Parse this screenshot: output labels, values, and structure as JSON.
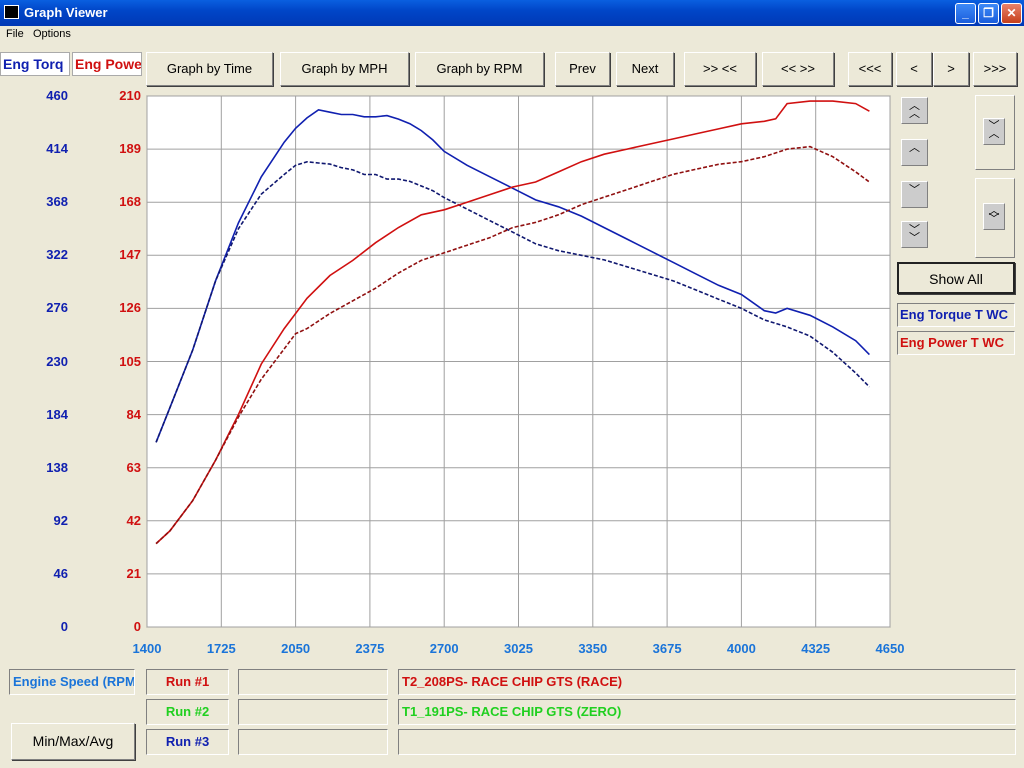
{
  "window": {
    "title": "Graph Viewer",
    "minimize": "_",
    "maximize": "❐",
    "close": "✕"
  },
  "menu": {
    "file": "File",
    "options": "Options"
  },
  "toolbar": {
    "graph_by_time": "Graph by Time",
    "graph_by_mph": "Graph by MPH",
    "graph_by_rpm": "Graph by RPM",
    "prev": "Prev",
    "next": "Next",
    "zoom_in": ">> <<",
    "zoom_out": "<< >>",
    "scroll_far_left": "<<<",
    "scroll_left": "<",
    "scroll_right": ">",
    "scroll_far_right": ">>>"
  },
  "y_tabs": {
    "torque": "Eng Torq",
    "power": "Eng Power"
  },
  "right_panel": {
    "show_all": "Show All",
    "legend_torque": "Eng Torque T WC",
    "legend_power": "Eng Power T WC"
  },
  "bottom": {
    "x_channel": "Engine Speed (RPM)",
    "minmax": "Min/Max/Avg",
    "run1_label": "Run #1",
    "run2_label": "Run #2",
    "run3_label": "Run #3",
    "run1_value": "",
    "run2_value": "",
    "run3_value": "",
    "run1_name": "T2_208PS- RACE CHIP GTS (RACE)",
    "run2_name": "T1_191PS- RACE CHIP GTS (ZERO)",
    "run3_name": ""
  },
  "colors": {
    "torque": "#1020b0",
    "power": "#d01010",
    "run2": "#20d020",
    "xaxis": "#1a74d9"
  },
  "chart_data": {
    "type": "line",
    "title": "",
    "xlabel": "Engine Speed (RPM)",
    "x_ticks": [
      "1400",
      "1725",
      "2050",
      "2375",
      "2700",
      "3025",
      "3350",
      "3675",
      "4000",
      "4325",
      "4650"
    ],
    "xlim": [
      1400,
      4650
    ],
    "y_left": {
      "label": "Eng Torq",
      "ticks": [
        "460",
        "414",
        "368",
        "322",
        "276",
        "230",
        "184",
        "138",
        "92",
        "46",
        "0"
      ],
      "ylim": [
        0,
        460
      ]
    },
    "y_right": {
      "label": "Eng Power",
      "ticks": [
        "210",
        "189",
        "168",
        "147",
        "126",
        "105",
        "84",
        "63",
        "42",
        "21",
        "0"
      ],
      "ylim": [
        0,
        210
      ]
    },
    "grid": true,
    "series": [
      {
        "name": "Eng Torque T WC",
        "run": "Run #1",
        "axis": "left",
        "style": "solid",
        "x": [
          1440,
          1500,
          1600,
          1700,
          1800,
          1900,
          2000,
          2050,
          2100,
          2150,
          2200,
          2250,
          2300,
          2350,
          2400,
          2450,
          2500,
          2550,
          2600,
          2650,
          2700,
          2800,
          2900,
          3000,
          3100,
          3200,
          3300,
          3400,
          3500,
          3600,
          3700,
          3800,
          3900,
          4000,
          4100,
          4150,
          4200,
          4300,
          4400,
          4500,
          4560
        ],
        "y": [
          160,
          190,
          240,
          300,
          350,
          390,
          420,
          432,
          441,
          448,
          446,
          444,
          444,
          442,
          442,
          443,
          440,
          436,
          430,
          422,
          412,
          400,
          390,
          380,
          370,
          364,
          356,
          346,
          336,
          326,
          316,
          306,
          296,
          288,
          274,
          272,
          276,
          270,
          260,
          248,
          236
        ]
      },
      {
        "name": "Eng Torque T WC",
        "run": "Run #2",
        "axis": "left",
        "style": "dashed",
        "x": [
          1440,
          1500,
          1600,
          1700,
          1800,
          1900,
          2000,
          2050,
          2100,
          2150,
          2200,
          2250,
          2300,
          2350,
          2400,
          2450,
          2500,
          2550,
          2600,
          2650,
          2700,
          2800,
          2900,
          3000,
          3100,
          3200,
          3300,
          3400,
          3500,
          3600,
          3700,
          3800,
          3900,
          4000,
          4100,
          4200,
          4300,
          4400,
          4500,
          4560
        ],
        "y": [
          160,
          190,
          240,
          300,
          345,
          375,
          392,
          400,
          403,
          402,
          401,
          398,
          396,
          392,
          392,
          388,
          388,
          386,
          382,
          378,
          372,
          362,
          352,
          342,
          332,
          326,
          322,
          318,
          312,
          306,
          300,
          292,
          284,
          276,
          266,
          260,
          252,
          238,
          220,
          208
        ]
      },
      {
        "name": "Eng Power T WC",
        "run": "Run #1",
        "axis": "right",
        "style": "solid",
        "x": [
          1440,
          1500,
          1600,
          1700,
          1800,
          1900,
          2000,
          2050,
          2100,
          2200,
          2300,
          2400,
          2500,
          2600,
          2700,
          2800,
          2900,
          3000,
          3100,
          3200,
          3300,
          3400,
          3500,
          3600,
          3700,
          3800,
          3900,
          4000,
          4100,
          4150,
          4200,
          4300,
          4400,
          4500,
          4560
        ],
        "y": [
          33,
          38,
          50,
          66,
          84,
          104,
          118,
          124,
          130,
          139,
          145,
          152,
          158,
          163,
          165,
          168,
          171,
          174,
          176,
          180,
          184,
          187,
          189,
          191,
          193,
          195,
          197,
          199,
          200,
          201,
          207,
          208,
          208,
          207,
          204
        ]
      },
      {
        "name": "Eng Power T WC",
        "run": "Run #2",
        "axis": "right",
        "style": "dashed",
        "x": [
          1440,
          1500,
          1600,
          1700,
          1800,
          1900,
          2000,
          2050,
          2100,
          2200,
          2300,
          2400,
          2500,
          2600,
          2700,
          2800,
          2900,
          3000,
          3100,
          3200,
          3300,
          3400,
          3500,
          3600,
          3700,
          3800,
          3900,
          4000,
          4100,
          4200,
          4300,
          4400,
          4500,
          4560
        ],
        "y": [
          33,
          38,
          50,
          66,
          83,
          98,
          110,
          116,
          118,
          124,
          129,
          134,
          140,
          145,
          148,
          151,
          154,
          158,
          160,
          163,
          167,
          170,
          173,
          176,
          179,
          181,
          183,
          184,
          186,
          189,
          190,
          186,
          180,
          176
        ]
      }
    ]
  }
}
